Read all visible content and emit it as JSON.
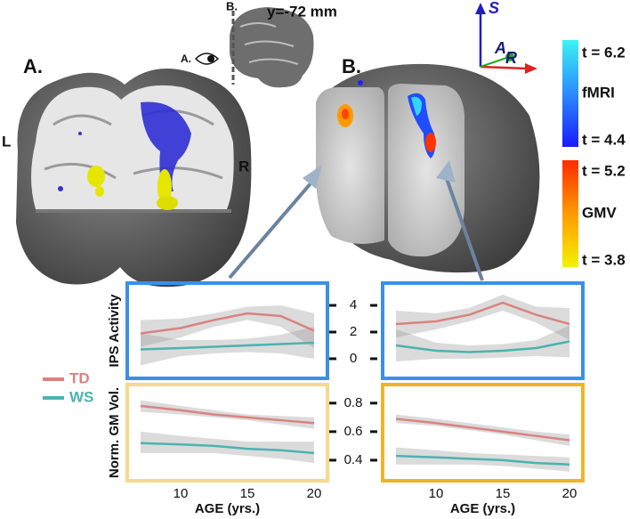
{
  "figure": {
    "panel_a": "A.",
    "panel_b": "B.",
    "left": "L",
    "right": "R",
    "inset_b": "B.",
    "inset_a": "A.",
    "slice": "y=-72 mm",
    "axes": {
      "s": "S",
      "a": "A",
      "r": "R"
    },
    "colorbars": {
      "fmri": {
        "top": "t = 6.2",
        "name": "fMRI",
        "bottom": "t = 4.4"
      },
      "gmv": {
        "top": "t = 5.2",
        "name": "GMV",
        "bottom": "t = 3.8"
      }
    }
  },
  "chart_data": [
    {
      "type": "line",
      "ylabel": "IPS Activity",
      "border": "#3b8fe6",
      "x": [
        7,
        10,
        12.5,
        15,
        17.5,
        20
      ],
      "xlim": [
        6,
        21
      ],
      "ylim": [
        -1.47,
        5.67
      ],
      "series": [
        {
          "name": "TD",
          "color": "#d9837f",
          "values": [
            1.9,
            2.3,
            2.9,
            3.4,
            3.2,
            2.1
          ],
          "lower": [
            0.9,
            1.6,
            2.4,
            2.9,
            2.4,
            0.8
          ],
          "upper": [
            2.9,
            3.0,
            3.4,
            3.9,
            4.0,
            3.4
          ]
        },
        {
          "name": "WS",
          "color": "#4bb3b0",
          "values": [
            0.7,
            0.8,
            0.9,
            1.0,
            1.1,
            1.2
          ],
          "lower": [
            -0.5,
            0.2,
            0.4,
            0.5,
            0.4,
            0.0
          ],
          "upper": [
            1.9,
            1.4,
            1.4,
            1.5,
            1.8,
            2.4
          ]
        }
      ]
    },
    {
      "type": "line",
      "border": "#3b8fe6",
      "x": [
        7,
        10,
        12.5,
        15,
        17.5,
        20
      ],
      "xlim": [
        6,
        21
      ],
      "ylim": [
        -1.47,
        5.67
      ],
      "yticks": [
        0,
        2,
        4
      ],
      "series": [
        {
          "color": "#d9837f",
          "values": [
            2.6,
            2.8,
            3.3,
            4.2,
            3.3,
            2.6
          ],
          "lower": [
            1.6,
            2.2,
            2.8,
            3.6,
            2.7,
            1.4
          ],
          "upper": [
            3.6,
            3.4,
            3.8,
            4.8,
            3.9,
            3.8
          ]
        },
        {
          "color": "#4bb3b0",
          "values": [
            1.0,
            0.6,
            0.5,
            0.6,
            0.8,
            1.3
          ],
          "lower": [
            -0.2,
            0.0,
            0.0,
            0.1,
            0.2,
            0.1
          ],
          "upper": [
            2.2,
            1.2,
            1.0,
            1.1,
            1.4,
            2.5
          ]
        }
      ]
    },
    {
      "type": "line",
      "ylabel": "Norm. GM Vol.",
      "xlabel": "AGE (yrs.)",
      "border": "#f6d98c",
      "x": [
        7,
        10,
        12.5,
        15,
        17.5,
        20
      ],
      "xlim": [
        6,
        21
      ],
      "ylim": [
        0.256,
        0.93
      ],
      "xticks": [
        10,
        15,
        20
      ],
      "series": [
        {
          "color": "#d9837f",
          "values": [
            0.78,
            0.75,
            0.72,
            0.7,
            0.68,
            0.66
          ],
          "lower": [
            0.74,
            0.72,
            0.7,
            0.68,
            0.65,
            0.62
          ],
          "upper": [
            0.82,
            0.78,
            0.75,
            0.72,
            0.71,
            0.7
          ]
        },
        {
          "color": "#4bb3b0",
          "values": [
            0.52,
            0.51,
            0.5,
            0.48,
            0.47,
            0.45
          ],
          "lower": [
            0.45,
            0.45,
            0.45,
            0.43,
            0.41,
            0.38
          ],
          "upper": [
            0.6,
            0.57,
            0.55,
            0.53,
            0.53,
            0.53
          ]
        }
      ]
    },
    {
      "type": "line",
      "xlabel": "AGE (yrs.)",
      "border": "#f0b429",
      "x": [
        7,
        10,
        12.5,
        15,
        17.5,
        20
      ],
      "xlim": [
        6,
        21
      ],
      "ylim": [
        0.256,
        0.93
      ],
      "xticks": [
        10,
        15,
        20
      ],
      "yticks": [
        {
          "value": 0.4,
          "label": "0.4"
        },
        {
          "value": 0.6,
          "label": "0.6"
        },
        {
          "value": 0.8,
          "label": "0.8"
        }
      ],
      "series": [
        {
          "color": "#d9837f",
          "values": [
            0.69,
            0.66,
            0.63,
            0.6,
            0.57,
            0.54
          ],
          "lower": [
            0.66,
            0.64,
            0.61,
            0.58,
            0.54,
            0.5
          ],
          "upper": [
            0.72,
            0.69,
            0.66,
            0.63,
            0.6,
            0.58
          ]
        },
        {
          "color": "#4bb3b0",
          "values": [
            0.43,
            0.42,
            0.41,
            0.4,
            0.38,
            0.37
          ],
          "lower": [
            0.37,
            0.37,
            0.37,
            0.36,
            0.34,
            0.32
          ],
          "upper": [
            0.49,
            0.47,
            0.45,
            0.44,
            0.43,
            0.42
          ]
        }
      ]
    }
  ]
}
